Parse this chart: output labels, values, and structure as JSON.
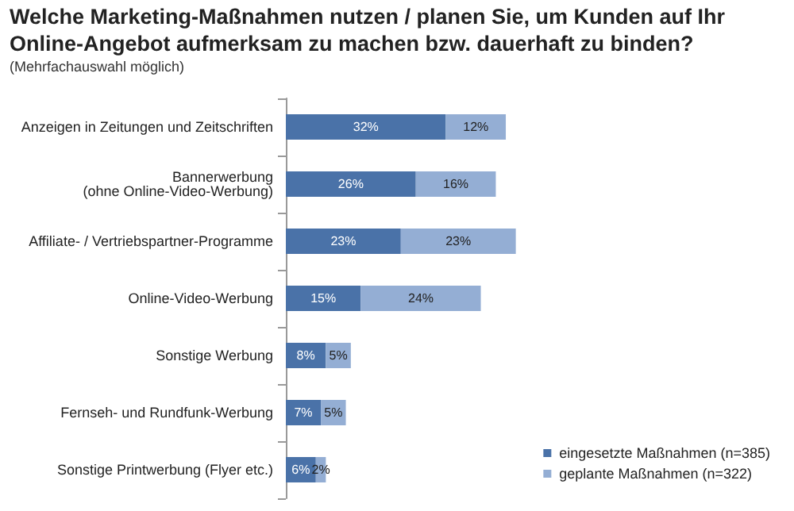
{
  "chart_data": {
    "type": "bar",
    "orientation": "horizontal",
    "stacked": true,
    "legend": "bottom right",
    "grid": false,
    "title": "Welche Marketing-Maßnahmen nutzen / planen Sie, um Kunden auf Ihr Online-Angebot aufmerksam zu machen bzw. dauerhaft zu binden?",
    "subtitle": "(Mehrfachauswahl möglich)",
    "categories": [
      "Anzeigen in Zeitungen und Zeitschriften",
      "Bannerwerbung\n(ohne Online-Video-Werbung)",
      "Affiliate- / Vertriebspartner-Programme",
      "Online-Video-Werbung",
      "Sonstige Werbung",
      "Fernseh- und Rundfunk-Werbung",
      "Sonstige Printwerbung (Flyer etc.)"
    ],
    "series": [
      {
        "name": "eingesetzte Maßnahmen (n=385)",
        "color": "#4a72a8",
        "values": [
          32,
          26,
          23,
          15,
          8,
          7,
          6
        ],
        "value_labels": [
          "32%",
          "26%",
          "23%",
          "15%",
          "8%",
          "7%",
          "6%"
        ]
      },
      {
        "name": "geplante Maßnahmen (n=322)",
        "color": "#94aed4",
        "values": [
          12,
          16,
          23,
          24,
          5,
          5,
          2
        ],
        "value_labels": [
          "12%",
          "16%",
          "23%",
          "24%",
          "5%",
          "5%",
          "2%"
        ]
      }
    ]
  }
}
